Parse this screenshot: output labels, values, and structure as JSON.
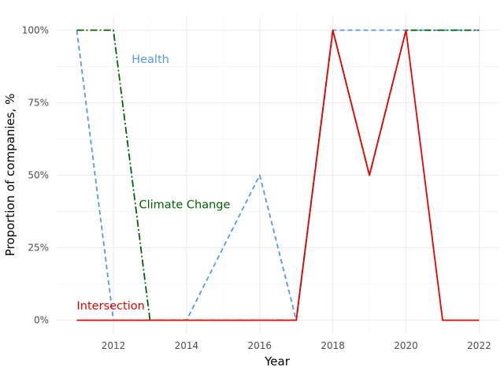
{
  "chart_data": {
    "type": "line",
    "title": "",
    "xlabel": "Year",
    "ylabel": "Proportion of companies, %",
    "x": [
      2011,
      2012,
      2013,
      2014,
      2015,
      2016,
      2017,
      2018,
      2019,
      2020,
      2021,
      2022
    ],
    "xlim": [
      2010.45,
      2022.55
    ],
    "ylim": [
      -0.05,
      1.05
    ],
    "x_ticks": [
      2012,
      2014,
      2016,
      2018,
      2020,
      2022
    ],
    "x_tick_labels": [
      "2012",
      "2014",
      "2016",
      "2018",
      "2020",
      "2022"
    ],
    "y_ticks": [
      0,
      0.25,
      0.5,
      0.75,
      1.0
    ],
    "y_tick_labels": [
      "0%",
      "25%",
      "50%",
      "75%",
      "100%"
    ],
    "grid": true,
    "legend": "none (direct labels)",
    "series": [
      {
        "name": "Health",
        "color": "#5599ee",
        "dash": "dashed",
        "values": [
          1.0,
          0.0,
          0.0,
          0.0,
          0.25,
          0.5,
          0.0,
          1.0,
          1.0,
          1.0,
          1.0,
          1.0
        ],
        "label_at": [
          2012.5,
          0.9
        ]
      },
      {
        "name": "Climate Change",
        "color": "#006400",
        "dash": "dashdot",
        "values": [
          1.0,
          1.0,
          0.0,
          0.0,
          0.0,
          0.0,
          0.0,
          1.0,
          0.5,
          1.0,
          1.0,
          1.0
        ],
        "label_at": [
          2012.7,
          0.4
        ]
      },
      {
        "name": "Intersection",
        "color": "#ee0000",
        "dash": "solid",
        "values": [
          0.0,
          0.0,
          0.0,
          0.0,
          0.0,
          0.0,
          0.0,
          1.0,
          0.5,
          1.0,
          0.0,
          0.0
        ],
        "label_at": [
          2011.0,
          0.05
        ]
      }
    ]
  }
}
